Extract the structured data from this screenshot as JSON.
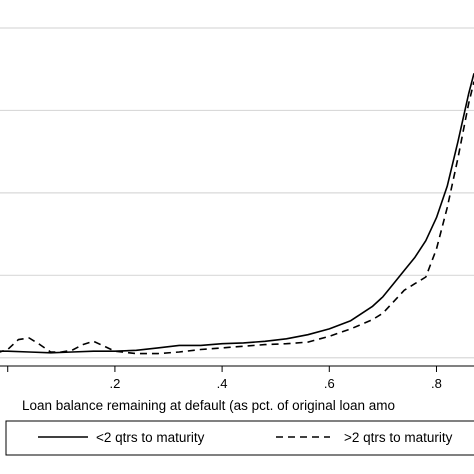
{
  "chart_data": {
    "type": "line",
    "title": "",
    "xlabel": "Loan balance remaining at default (as pct. of original loan amo",
    "ylabel": "",
    "xlim": [
      -0.02,
      0.87
    ],
    "ylim": [
      -0.1,
      4.0
    ],
    "x_ticks": [
      {
        "value": 0.2,
        "label": ".2"
      },
      {
        "value": 0.4,
        "label": ".4"
      },
      {
        "value": 0.6,
        "label": ".6"
      },
      {
        "value": 0.8,
        "label": ".8"
      }
    ],
    "y_gridlines": [
      0,
      1,
      2,
      3,
      4
    ],
    "grid": true,
    "legend_position": "bottom",
    "series": [
      {
        "name": "<2 qtrs to maturity",
        "style": "solid",
        "points": [
          [
            -0.02,
            0.08
          ],
          [
            0.0,
            0.08
          ],
          [
            0.04,
            0.07
          ],
          [
            0.08,
            0.06
          ],
          [
            0.12,
            0.07
          ],
          [
            0.16,
            0.08
          ],
          [
            0.2,
            0.08
          ],
          [
            0.24,
            0.09
          ],
          [
            0.28,
            0.12
          ],
          [
            0.32,
            0.15
          ],
          [
            0.36,
            0.15
          ],
          [
            0.4,
            0.17
          ],
          [
            0.44,
            0.18
          ],
          [
            0.48,
            0.2
          ],
          [
            0.52,
            0.23
          ],
          [
            0.56,
            0.28
          ],
          [
            0.6,
            0.35
          ],
          [
            0.64,
            0.45
          ],
          [
            0.68,
            0.62
          ],
          [
            0.7,
            0.74
          ],
          [
            0.72,
            0.9
          ],
          [
            0.74,
            1.06
          ],
          [
            0.76,
            1.22
          ],
          [
            0.78,
            1.42
          ],
          [
            0.8,
            1.7
          ],
          [
            0.82,
            2.08
          ],
          [
            0.84,
            2.62
          ],
          [
            0.86,
            3.2
          ],
          [
            0.87,
            3.45
          ]
        ]
      },
      {
        "name": ">2 qtrs to maturity",
        "style": "dashed",
        "points": [
          [
            -0.02,
            0.06
          ],
          [
            0.0,
            0.1
          ],
          [
            0.02,
            0.22
          ],
          [
            0.04,
            0.24
          ],
          [
            0.06,
            0.16
          ],
          [
            0.08,
            0.07
          ],
          [
            0.1,
            0.07
          ],
          [
            0.12,
            0.09
          ],
          [
            0.14,
            0.16
          ],
          [
            0.16,
            0.2
          ],
          [
            0.18,
            0.14
          ],
          [
            0.2,
            0.08
          ],
          [
            0.24,
            0.05
          ],
          [
            0.28,
            0.05
          ],
          [
            0.32,
            0.07
          ],
          [
            0.36,
            0.1
          ],
          [
            0.4,
            0.12
          ],
          [
            0.44,
            0.14
          ],
          [
            0.48,
            0.16
          ],
          [
            0.52,
            0.17
          ],
          [
            0.56,
            0.19
          ],
          [
            0.6,
            0.26
          ],
          [
            0.64,
            0.35
          ],
          [
            0.68,
            0.46
          ],
          [
            0.7,
            0.54
          ],
          [
            0.72,
            0.68
          ],
          [
            0.74,
            0.82
          ],
          [
            0.76,
            0.9
          ],
          [
            0.78,
            0.98
          ],
          [
            0.8,
            1.32
          ],
          [
            0.82,
            1.82
          ],
          [
            0.84,
            2.42
          ],
          [
            0.86,
            3.08
          ],
          [
            0.87,
            3.35
          ]
        ]
      }
    ]
  }
}
